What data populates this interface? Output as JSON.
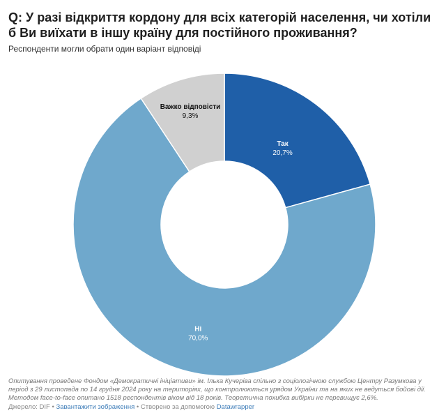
{
  "header": {
    "title": "Q: У разі відкриття кордону для всіх категорій населення, чи хотіли б Ви виїхати в іншу країну для постійного проживання?",
    "subtitle": "Респонденти могли обрати один варіант відповіді"
  },
  "chart_data": {
    "type": "pie",
    "donut": true,
    "title": "Q: У разі відкриття кордону для всіх категорій населення, чи хотіли б Ви виїхати в іншу країну для постійного проживання?",
    "subtitle": "Респонденти могли обрати один варіант відповіді",
    "slices": [
      {
        "label": "Так",
        "value": 20.7,
        "display": "20,7%",
        "color": "#1f5fa8"
      },
      {
        "label": "Ні",
        "value": 70.0,
        "display": "70,0%",
        "color": "#6fa8cc"
      },
      {
        "label": "Важко відповісти",
        "value": 9.3,
        "display": "9,3%",
        "color": "#d0d0d0"
      }
    ],
    "start_angle": "top",
    "direction": "clockwise"
  },
  "notes": "Опитування проведене Фондом «Демократичні ініціативи» ім. Ілька Кучеріва спільно з соціологічною службою Центру Разумкова у період з 29 листопада по 14 грудня 2024 року на територіях, що контролюються урядом України та на яких не ведуться бойові дії. Методом face-to-face опитано 1518 респондентів віком від 18 років. Теоретична похибка вибірки не перевищує 2,6%.",
  "footer": {
    "source": "Джерело: DIF",
    "sep1": " • ",
    "download": "Завантажити зображення",
    "sep2": " • ",
    "created": "Створено за допомогою ",
    "tool": "Datawrapper"
  }
}
